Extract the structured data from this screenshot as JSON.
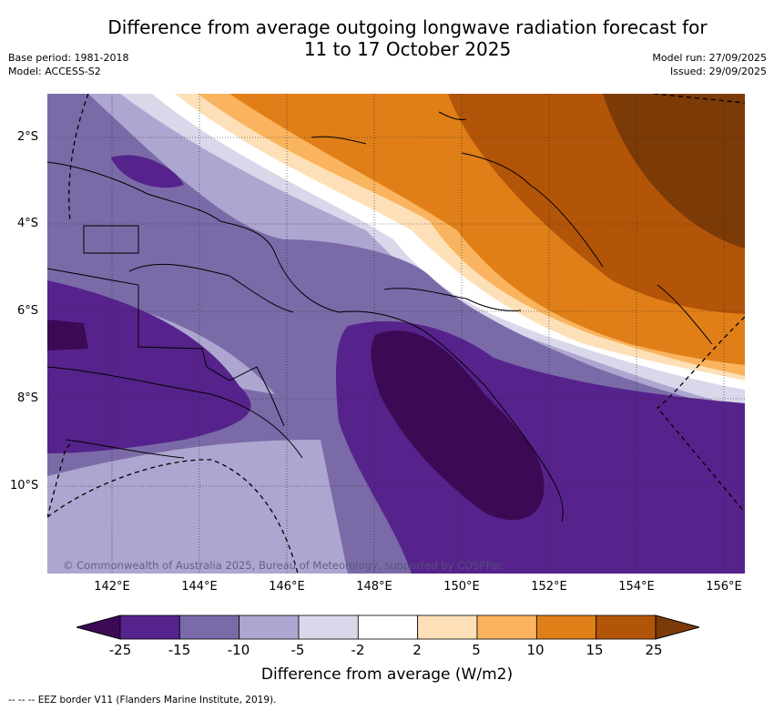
{
  "title_line1": "Difference from average outgoing longwave radiation forecast for",
  "title_line2": "11 to 17 October 2025",
  "meta_left": {
    "base_period": "Base period: 1981-2018",
    "model": "Model: ACCESS-S2"
  },
  "meta_right": {
    "model_run": "Model run: 27/09/2025",
    "issued": "Issued: 29/09/2025"
  },
  "copyright": "© Commonwealth of Australia 2025, Bureau of Meteorology, supported by COSPPac",
  "lat_labels": [
    "2°S",
    "4°S",
    "6°S",
    "8°S",
    "10°S"
  ],
  "lon_labels": [
    "142°E",
    "144°E",
    "146°E",
    "148°E",
    "150°E",
    "152°E",
    "154°E",
    "156°E"
  ],
  "colorbar": {
    "ticks": [
      "-25",
      "-15",
      "-10",
      "-5",
      "-2",
      "2",
      "5",
      "10",
      "15",
      "25"
    ],
    "label": "Difference from average (W/m2)",
    "colors": [
      "#3c0a55",
      "#56238c",
      "#7b6aa8",
      "#ada6d0",
      "#d9d8eb",
      "#ffffff",
      "#fde0b8",
      "#fab45f",
      "#e07f18",
      "#b35508",
      "#7c3a06"
    ]
  },
  "footer": "-- -- -- EEZ border V11 (Flanders Marine Institute, 2019)."
}
